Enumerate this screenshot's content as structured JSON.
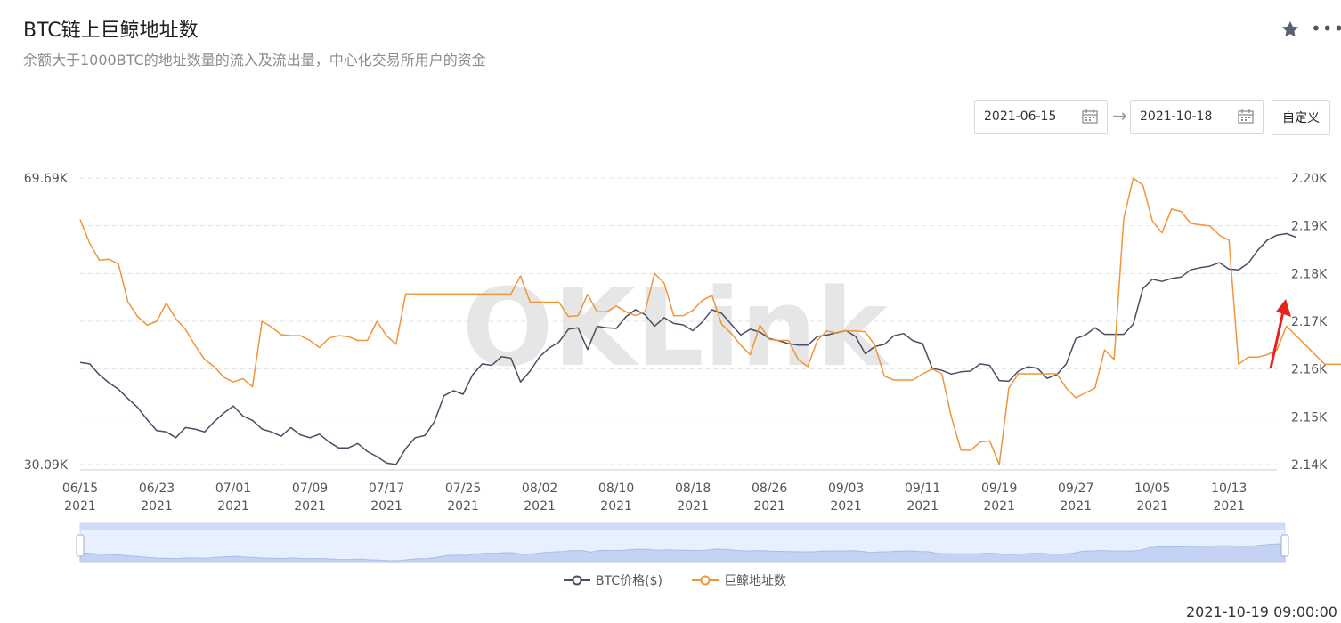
{
  "header": {
    "title": "BTC链上巨鲸地址数",
    "subtitle": "余额大于1000BTC的地址数量的流入及流出量，中心化交易所用户的资金"
  },
  "controls": {
    "start_date": "2021-06-15",
    "end_date": "2021-10-18",
    "custom_label": "自定义"
  },
  "footer": {
    "timestamp": "2021-10-19 09:00:00"
  },
  "watermark": "OKLink",
  "colors": {
    "btc": "#4a4d63",
    "whale": "#f0953a",
    "grid": "#e3e3e3",
    "arrow": "#e8231d"
  },
  "chart_data": {
    "type": "line",
    "x_ticks": [
      "06/15\n2021",
      "06/23\n2021",
      "07/01\n2021",
      "07/09\n2021",
      "07/17\n2021",
      "07/25\n2021",
      "08/02\n2021",
      "08/10\n2021",
      "08/18\n2021",
      "08/26\n2021",
      "09/03\n2021",
      "09/11\n2021",
      "09/19\n2021",
      "09/27\n2021",
      "10/05\n2021",
      "10/13\n2021"
    ],
    "x_range_days": [
      0,
      125
    ],
    "y_left": {
      "min_label": "30.09K",
      "max_label": "69.69K",
      "range": [
        30.09,
        69.69
      ]
    },
    "y_right": {
      "ticks": [
        "2.14K",
        "2.15K",
        "2.16K",
        "2.17K",
        "2.18K",
        "2.19K",
        "2.20K"
      ],
      "range": [
        2.14,
        2.2
      ]
    },
    "series": [
      {
        "name": "BTC价格($)",
        "axis": "left",
        "points": [
          [
            0,
            44.2
          ],
          [
            1,
            44.0
          ],
          [
            2,
            42.5
          ],
          [
            3,
            41.4
          ],
          [
            4,
            40.5
          ],
          [
            5,
            39.2
          ],
          [
            6,
            38.0
          ],
          [
            7,
            36.3
          ],
          [
            8,
            34.8
          ],
          [
            9,
            34.6
          ],
          [
            10,
            33.8
          ],
          [
            11,
            35.2
          ],
          [
            12,
            35.0
          ],
          [
            13,
            34.6
          ],
          [
            14,
            36.0
          ],
          [
            15,
            37.2
          ],
          [
            16,
            38.2
          ],
          [
            17,
            36.8
          ],
          [
            18,
            36.2
          ],
          [
            19,
            35.0
          ],
          [
            20,
            34.6
          ],
          [
            21,
            34.0
          ],
          [
            22,
            35.2
          ],
          [
            23,
            34.2
          ],
          [
            24,
            33.8
          ],
          [
            25,
            34.3
          ],
          [
            26,
            33.2
          ],
          [
            27,
            32.4
          ],
          [
            28,
            32.4
          ],
          [
            29,
            33.0
          ],
          [
            30,
            31.9
          ],
          [
            31,
            31.2
          ],
          [
            32,
            30.3
          ],
          [
            33,
            30.09
          ],
          [
            34,
            32.3
          ],
          [
            35,
            33.8
          ],
          [
            36,
            34.1
          ],
          [
            37,
            36.0
          ],
          [
            38,
            39.6
          ],
          [
            39,
            40.3
          ],
          [
            40,
            39.8
          ],
          [
            41,
            42.5
          ],
          [
            42,
            44.0
          ],
          [
            43,
            43.8
          ],
          [
            44,
            45.0
          ],
          [
            45,
            44.8
          ],
          [
            46,
            41.5
          ],
          [
            47,
            43.0
          ],
          [
            48,
            45.0
          ],
          [
            49,
            46.2
          ],
          [
            50,
            47.0
          ],
          [
            51,
            48.8
          ],
          [
            52,
            49.0
          ],
          [
            53,
            46.0
          ],
          [
            54,
            49.2
          ],
          [
            55,
            49.0
          ],
          [
            56,
            48.9
          ],
          [
            57,
            50.5
          ],
          [
            58,
            51.5
          ],
          [
            59,
            50.8
          ],
          [
            60,
            49.2
          ],
          [
            61,
            50.4
          ],
          [
            62,
            49.6
          ],
          [
            63,
            49.4
          ],
          [
            64,
            48.6
          ],
          [
            65,
            49.8
          ],
          [
            66,
            51.5
          ],
          [
            67,
            51.0
          ],
          [
            68,
            49.5
          ],
          [
            69,
            48.0
          ],
          [
            70,
            48.8
          ],
          [
            71,
            48.4
          ],
          [
            72,
            47.5
          ],
          [
            73,
            47.2
          ],
          [
            74,
            46.8
          ],
          [
            75,
            46.6
          ],
          [
            76,
            46.6
          ],
          [
            77,
            47.8
          ],
          [
            78,
            48.0
          ],
          [
            79,
            48.3
          ],
          [
            80,
            48.6
          ],
          [
            81,
            47.8
          ],
          [
            82,
            45.4
          ],
          [
            83,
            46.4
          ],
          [
            84,
            46.7
          ],
          [
            85,
            47.9
          ],
          [
            86,
            48.2
          ],
          [
            87,
            47.2
          ],
          [
            88,
            46.8
          ],
          [
            89,
            43.4
          ],
          [
            90,
            43.1
          ],
          [
            91,
            42.6
          ],
          [
            92,
            42.9
          ],
          [
            93,
            43.0
          ],
          [
            94,
            44.0
          ],
          [
            95,
            43.8
          ],
          [
            96,
            41.7
          ],
          [
            97,
            41.6
          ],
          [
            98,
            43.0
          ],
          [
            99,
            43.6
          ],
          [
            100,
            43.4
          ],
          [
            101,
            42.0
          ],
          [
            102,
            42.5
          ],
          [
            103,
            44.0
          ],
          [
            104,
            47.5
          ],
          [
            105,
            48.0
          ],
          [
            106,
            49.0
          ],
          [
            107,
            48.1
          ],
          [
            108,
            48.1
          ],
          [
            109,
            48.1
          ],
          [
            110,
            49.5
          ],
          [
            111,
            54.4
          ],
          [
            112,
            55.7
          ],
          [
            113,
            55.4
          ],
          [
            114,
            55.8
          ],
          [
            115,
            56.0
          ],
          [
            116,
            57.0
          ],
          [
            117,
            57.3
          ],
          [
            118,
            57.5
          ],
          [
            119,
            58.0
          ],
          [
            120,
            57.1
          ],
          [
            121,
            57.0
          ],
          [
            122,
            57.9
          ],
          [
            123,
            59.7
          ],
          [
            124,
            61.1
          ],
          [
            125,
            61.8
          ],
          [
            126,
            62.0
          ],
          [
            127,
            61.5
          ]
        ]
      },
      {
        "name": "巨鲸地址数",
        "axis": "right",
        "points": [
          [
            0,
            2.1913
          ],
          [
            1,
            2.1863
          ],
          [
            2,
            2.1828
          ],
          [
            3,
            2.183
          ],
          [
            4,
            2.182
          ],
          [
            5,
            2.174
          ],
          [
            6,
            2.171
          ],
          [
            7,
            2.1692
          ],
          [
            8,
            2.17
          ],
          [
            9,
            2.1738
          ],
          [
            10,
            2.1705
          ],
          [
            11,
            2.1683
          ],
          [
            12,
            2.165
          ],
          [
            13,
            2.162
          ],
          [
            14,
            2.1605
          ],
          [
            15,
            2.1583
          ],
          [
            16,
            2.1573
          ],
          [
            17,
            2.158
          ],
          [
            18,
            2.1563
          ],
          [
            19,
            2.17
          ],
          [
            20,
            2.1688
          ],
          [
            21,
            2.1672
          ],
          [
            22,
            2.167
          ],
          [
            23,
            2.167
          ],
          [
            24,
            2.166
          ],
          [
            25,
            2.1645
          ],
          [
            26,
            2.1665
          ],
          [
            27,
            2.167
          ],
          [
            28,
            2.1668
          ],
          [
            29,
            2.166
          ],
          [
            30,
            2.166
          ],
          [
            31,
            2.17
          ],
          [
            32,
            2.167
          ],
          [
            33,
            2.1652
          ],
          [
            34,
            2.1757
          ],
          [
            35,
            2.1757
          ],
          [
            36,
            2.1757
          ],
          [
            37,
            2.1757
          ],
          [
            38,
            2.1757
          ],
          [
            39,
            2.1757
          ],
          [
            40,
            2.1757
          ],
          [
            41,
            2.1757
          ],
          [
            42,
            2.1757
          ],
          [
            43,
            2.1757
          ],
          [
            44,
            2.1757
          ],
          [
            45,
            2.1757
          ],
          [
            46,
            2.1795
          ],
          [
            47,
            2.174
          ],
          [
            48,
            2.174
          ],
          [
            49,
            2.174
          ],
          [
            50,
            2.174
          ],
          [
            51,
            2.171
          ],
          [
            52,
            2.1712
          ],
          [
            53,
            2.1756
          ],
          [
            54,
            2.172
          ],
          [
            55,
            2.172
          ],
          [
            56,
            2.1732
          ],
          [
            57,
            2.172
          ],
          [
            58,
            2.1712
          ],
          [
            59,
            2.172
          ],
          [
            60,
            2.18
          ],
          [
            61,
            2.178
          ],
          [
            62,
            2.1712
          ],
          [
            63,
            2.1712
          ],
          [
            64,
            2.1723
          ],
          [
            65,
            2.1744
          ],
          [
            66,
            2.1754
          ],
          [
            67,
            2.1694
          ],
          [
            68,
            2.1675
          ],
          [
            69,
            2.165
          ],
          [
            70,
            2.163
          ],
          [
            71,
            2.1692
          ],
          [
            72,
            2.1662
          ],
          [
            73,
            2.166
          ],
          [
            74,
            2.166
          ],
          [
            75,
            2.162
          ],
          [
            76,
            2.1605
          ],
          [
            77,
            2.166
          ],
          [
            78,
            2.168
          ],
          [
            79,
            2.1675
          ],
          [
            80,
            2.168
          ],
          [
            81,
            2.168
          ],
          [
            82,
            2.1678
          ],
          [
            83,
            2.165
          ],
          [
            84,
            2.1585
          ],
          [
            85,
            2.1577
          ],
          [
            86,
            2.1577
          ],
          [
            87,
            2.1577
          ],
          [
            88,
            2.159
          ],
          [
            89,
            2.16
          ],
          [
            90,
            2.159
          ],
          [
            91,
            2.15
          ],
          [
            92,
            2.143
          ],
          [
            93,
            2.143
          ],
          [
            94,
            2.1447
          ],
          [
            95,
            2.145
          ],
          [
            96,
            2.14
          ],
          [
            97,
            2.156
          ],
          [
            98,
            2.159
          ],
          [
            99,
            2.159
          ],
          [
            100,
            2.159
          ],
          [
            101,
            2.159
          ],
          [
            102,
            2.159
          ],
          [
            103,
            2.156
          ],
          [
            104,
            2.154
          ],
          [
            105,
            2.155
          ],
          [
            106,
            2.156
          ],
          [
            107,
            2.164
          ],
          [
            108,
            2.162
          ],
          [
            109,
            2.1915
          ],
          [
            110,
            2.2
          ],
          [
            111,
            2.1985
          ],
          [
            112,
            2.191
          ],
          [
            113,
            2.1885
          ],
          [
            114,
            2.1935
          ],
          [
            115,
            2.193
          ],
          [
            116,
            2.1905
          ],
          [
            117,
            2.1902
          ],
          [
            118,
            2.19
          ],
          [
            119,
            2.188
          ],
          [
            120,
            2.187
          ],
          [
            121,
            2.161
          ],
          [
            122,
            2.1625
          ],
          [
            123,
            2.1625
          ],
          [
            124,
            2.163
          ],
          [
            125,
            2.164
          ],
          [
            126,
            2.169
          ],
          [
            127,
            2.167
          ],
          [
            128,
            2.165
          ],
          [
            129,
            2.163
          ],
          [
            130,
            2.161
          ],
          [
            131,
            2.161
          ],
          [
            132,
            2.161
          ],
          [
            133,
            2.165
          ],
          [
            134,
            2.175
          ]
        ]
      }
    ],
    "grid": true,
    "legend_position": "bottom"
  }
}
